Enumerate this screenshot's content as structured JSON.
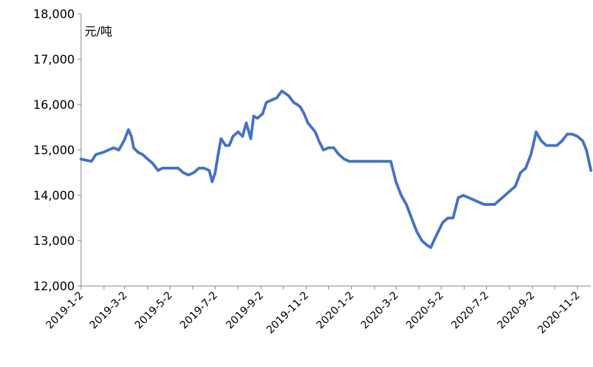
{
  "chart_data": {
    "type": "line",
    "title": "",
    "unit_label": "元/吨",
    "xlabel": "",
    "ylabel": "",
    "ylim": [
      12000,
      18000
    ],
    "ytick_labels": [
      "12,000",
      "13,000",
      "14,000",
      "15,000",
      "16,000",
      "17,000",
      "18,000"
    ],
    "yticks": [
      12000,
      13000,
      14000,
      15000,
      16000,
      17000,
      18000
    ],
    "xlim": [
      "2019-01-02",
      "2020-11-20"
    ],
    "xtick_labels": [
      "2019-1-2",
      "2019-3-2",
      "2019-5-2",
      "2019-7-2",
      "2019-9-2",
      "2019-11-2",
      "2020-1-2",
      "2020-3-2",
      "2020-5-2",
      "2020-7-2",
      "2020-9-2",
      "2020-11-2"
    ],
    "xticks": [
      "2019-01-02",
      "2019-03-02",
      "2019-05-02",
      "2019-07-02",
      "2019-09-02",
      "2019-11-02",
      "2020-01-02",
      "2020-03-02",
      "2020-05-02",
      "2020-07-02",
      "2020-09-02",
      "2020-11-02"
    ],
    "grid": false,
    "legend": "none",
    "line_color": "#4472C4",
    "series": [
      {
        "x": [
          "2019-01-02",
          "2019-01-16",
          "2019-01-22",
          "2019-02-01",
          "2019-02-15",
          "2019-02-22",
          "2019-03-01",
          "2019-03-07",
          "2019-03-11",
          "2019-03-14",
          "2019-03-20",
          "2019-03-26",
          "2019-04-02",
          "2019-04-09",
          "2019-04-16",
          "2019-04-22",
          "2019-04-29",
          "2019-05-06",
          "2019-05-13",
          "2019-05-20",
          "2019-05-27",
          "2019-06-03",
          "2019-06-10",
          "2019-06-17",
          "2019-06-24",
          "2019-06-28",
          "2019-07-02",
          "2019-07-06",
          "2019-07-10",
          "2019-07-16",
          "2019-07-21",
          "2019-07-26",
          "2019-08-02",
          "2019-08-08",
          "2019-08-13",
          "2019-08-19",
          "2019-08-23",
          "2019-08-28",
          "2019-09-04",
          "2019-09-09",
          "2019-09-16",
          "2019-09-23",
          "2019-09-30",
          "2019-10-09",
          "2019-10-16",
          "2019-10-21",
          "2019-10-25",
          "2019-10-30",
          "2019-11-04",
          "2019-11-09",
          "2019-11-14",
          "2019-11-19",
          "2019-11-25",
          "2019-12-02",
          "2019-12-09",
          "2019-12-16",
          "2019-12-23",
          "2019-12-30",
          "2020-01-06",
          "2020-01-13",
          "2020-01-20",
          "2020-01-27",
          "2020-02-10",
          "2020-02-24",
          "2020-03-02",
          "2020-03-09",
          "2020-03-16",
          "2020-03-23",
          "2020-03-30",
          "2020-04-06",
          "2020-04-13",
          "2020-04-18",
          "2020-04-22",
          "2020-04-28",
          "2020-05-04",
          "2020-05-11",
          "2020-05-18",
          "2020-05-25",
          "2020-06-01",
          "2020-06-08",
          "2020-06-15",
          "2020-06-22",
          "2020-06-29",
          "2020-07-06",
          "2020-07-13",
          "2020-07-20",
          "2020-07-27",
          "2020-08-03",
          "2020-08-10",
          "2020-08-17",
          "2020-08-24",
          "2020-08-31",
          "2020-09-03",
          "2020-09-07",
          "2020-09-14",
          "2020-09-21",
          "2020-09-28",
          "2020-10-05",
          "2020-10-12",
          "2020-10-19",
          "2020-10-26",
          "2020-11-02",
          "2020-11-09",
          "2020-11-14",
          "2020-11-20"
        ],
        "values": [
          14800,
          14750,
          14900,
          14950,
          15050,
          15000,
          15200,
          15450,
          15300,
          15050,
          14950,
          14900,
          14800,
          14700,
          14550,
          14600,
          14600,
          14600,
          14600,
          14500,
          14450,
          14500,
          14600,
          14600,
          14550,
          14300,
          14500,
          14900,
          15250,
          15100,
          15100,
          15300,
          15400,
          15300,
          15600,
          15250,
          15750,
          15700,
          15800,
          16050,
          16100,
          16150,
          16300,
          16200,
          16050,
          16000,
          15950,
          15800,
          15600,
          15500,
          15400,
          15200,
          15000,
          15050,
          15050,
          14900,
          14800,
          14750,
          14750,
          14750,
          14750,
          14750,
          14750,
          14750,
          14300,
          14000,
          13800,
          13500,
          13200,
          13000,
          12900,
          12850,
          13000,
          13200,
          13400,
          13500,
          13500,
          13950,
          14000,
          13950,
          13900,
          13850,
          13800,
          13800,
          13800,
          13900,
          14000,
          14100,
          14200,
          14500,
          14600,
          14900,
          15100,
          15400,
          15200,
          15100,
          15100,
          15100,
          15200,
          15350,
          15350,
          15300,
          15200,
          15000,
          14550
        ]
      }
    ]
  }
}
